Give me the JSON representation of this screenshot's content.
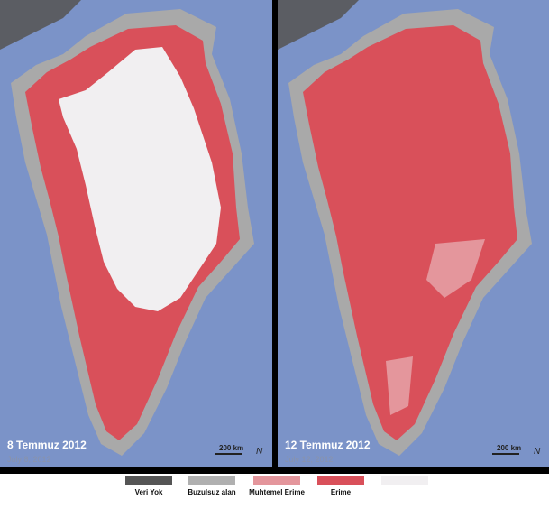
{
  "panels": [
    {
      "title": "8 Temmuz 2012",
      "date": "July 8, 2012",
      "scale": "200 km",
      "north": "N"
    },
    {
      "title": "12 Temmuz 2012",
      "date": "July 12, 2012",
      "scale": "200 km",
      "north": "N"
    }
  ],
  "legend": [
    "Veri Yok",
    "Buzulsuz alan",
    "Muhtemel Erime",
    "Erime"
  ]
}
